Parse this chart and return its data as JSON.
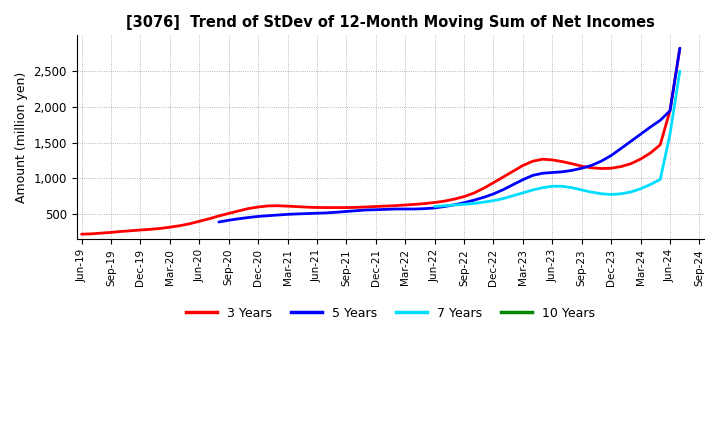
{
  "title": "[3076]  Trend of StDev of 12-Month Moving Sum of Net Incomes",
  "ylabel": "Amount (million yen)",
  "background_color": "#ffffff",
  "grid_color": "#999999",
  "ylim": [
    150,
    3000
  ],
  "yticks": [
    500,
    1000,
    1500,
    2000,
    2500
  ],
  "series": {
    "3 Years": {
      "color": "#ff0000",
      "x": [
        0,
        1,
        2,
        3,
        4,
        5,
        6,
        7,
        8,
        9,
        10,
        11,
        12,
        13,
        14,
        15,
        16,
        17,
        18,
        19,
        20,
        21,
        22,
        23,
        24,
        25,
        26,
        27,
        28,
        29,
        30,
        31,
        32,
        33,
        34,
        35,
        36,
        37,
        38,
        39,
        40,
        41,
        42,
        43,
        44,
        45,
        46,
        47,
        48,
        49,
        50,
        51,
        52,
        53,
        54,
        55,
        56,
        57,
        58,
        59,
        60,
        61
      ],
      "y": [
        220,
        225,
        235,
        245,
        258,
        268,
        278,
        288,
        300,
        318,
        338,
        365,
        400,
        435,
        475,
        510,
        545,
        578,
        600,
        615,
        618,
        612,
        605,
        598,
        593,
        592,
        592,
        592,
        595,
        600,
        607,
        613,
        619,
        628,
        637,
        648,
        663,
        682,
        710,
        745,
        795,
        862,
        940,
        1020,
        1100,
        1180,
        1240,
        1268,
        1258,
        1235,
        1205,
        1170,
        1148,
        1138,
        1142,
        1165,
        1205,
        1270,
        1355,
        1470,
        1950,
        2820
      ]
    },
    "5 Years": {
      "color": "#0000ff",
      "x": [
        14,
        15,
        16,
        17,
        18,
        19,
        20,
        21,
        22,
        23,
        24,
        25,
        26,
        27,
        28,
        29,
        30,
        31,
        32,
        33,
        34,
        35,
        36,
        37,
        38,
        39,
        40,
        41,
        42,
        43,
        44,
        45,
        46,
        47,
        48,
        49,
        50,
        51,
        52,
        53,
        54,
        55,
        56,
        57,
        58,
        59,
        60,
        61
      ],
      "y": [
        390,
        415,
        435,
        453,
        468,
        478,
        488,
        497,
        503,
        508,
        513,
        518,
        527,
        538,
        548,
        558,
        562,
        567,
        572,
        572,
        572,
        577,
        587,
        607,
        630,
        660,
        695,
        735,
        783,
        843,
        913,
        982,
        1042,
        1072,
        1082,
        1092,
        1112,
        1142,
        1182,
        1242,
        1320,
        1418,
        1518,
        1618,
        1718,
        1812,
        1945,
        2820
      ]
    },
    "7 Years": {
      "color": "#00ddff",
      "x": [
        36,
        37,
        38,
        39,
        40,
        41,
        42,
        43,
        44,
        45,
        46,
        47,
        48,
        49,
        50,
        51,
        52,
        53,
        54,
        55,
        56,
        57,
        58,
        59,
        60,
        61
      ],
      "y": [
        608,
        618,
        628,
        638,
        650,
        668,
        688,
        718,
        758,
        798,
        838,
        870,
        890,
        890,
        870,
        838,
        808,
        785,
        775,
        785,
        810,
        855,
        915,
        985,
        1620,
        2500
      ]
    },
    "10 Years": {
      "color": "#008800",
      "x": [],
      "y": []
    }
  },
  "xtick_labels": [
    "Jun-19",
    "Sep-19",
    "Dec-19",
    "Mar-20",
    "Jun-20",
    "Sep-20",
    "Dec-20",
    "Mar-21",
    "Jun-21",
    "Sep-21",
    "Dec-21",
    "Mar-22",
    "Jun-22",
    "Sep-22",
    "Dec-22",
    "Mar-23",
    "Jun-23",
    "Sep-23",
    "Dec-23",
    "Mar-24",
    "Jun-24",
    "Sep-24"
  ],
  "xtick_positions": [
    0,
    3,
    6,
    9,
    12,
    15,
    18,
    21,
    24,
    27,
    30,
    33,
    36,
    39,
    42,
    45,
    48,
    51,
    54,
    57,
    60,
    63
  ],
  "legend_labels": [
    "3 Years",
    "5 Years",
    "7 Years",
    "10 Years"
  ],
  "legend_colors": [
    "#ff0000",
    "#0000ff",
    "#00ddff",
    "#008800"
  ],
  "linewidth": 2.0
}
